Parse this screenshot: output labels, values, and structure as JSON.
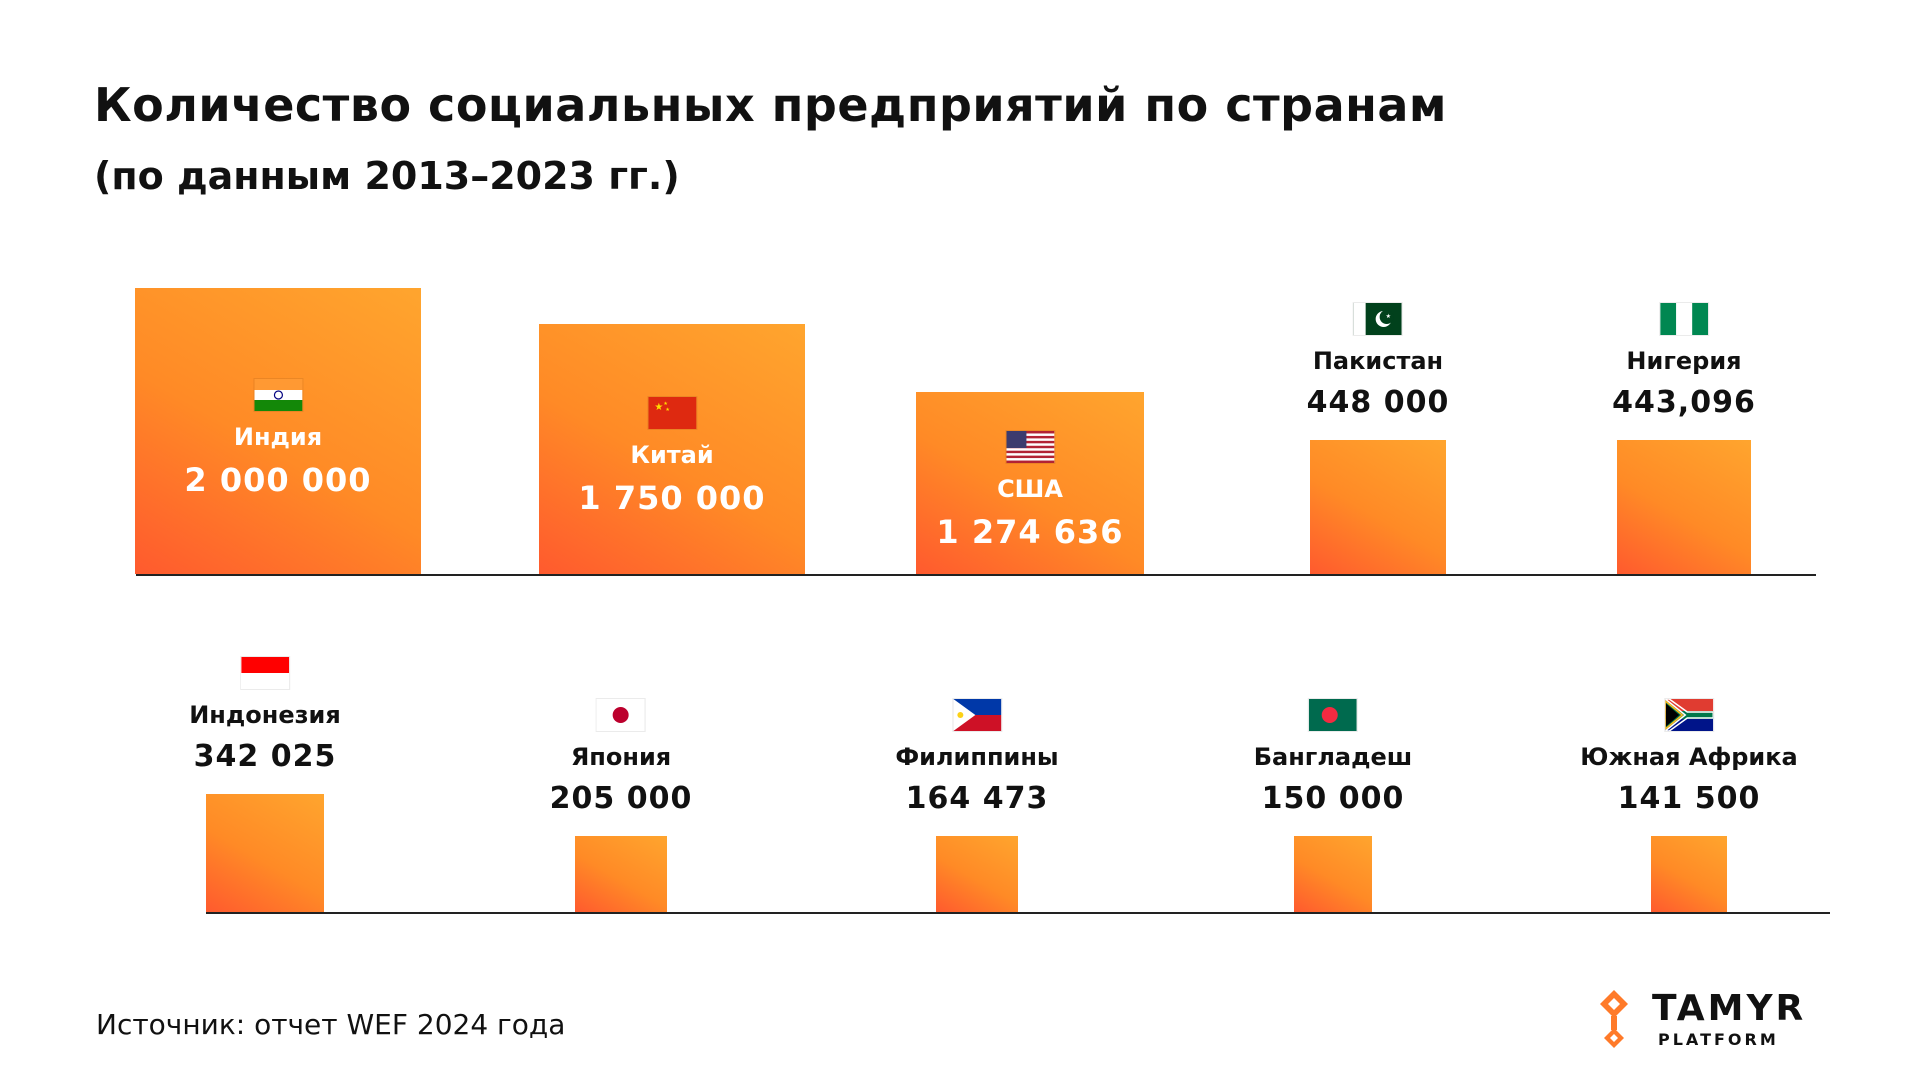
{
  "title": "Количество социальных предприятий по странам",
  "subtitle": "(по данным 2013–2023 гг.)",
  "source": "Источник: отчет WEF 2024 года",
  "logo": {
    "name": "TAMYR",
    "sub": "PLATFORM",
    "icon": "tamyr-logo-icon"
  },
  "colors": {
    "bar_start": "#ff5a2e",
    "bar_end": "#ffa52e",
    "text": "#111111"
  },
  "chart_data": [
    {
      "type": "bar",
      "categories": [
        "Индия",
        "Китай",
        "США",
        "Пакистан",
        "Нигерия"
      ],
      "values": [
        2000000,
        1750000,
        1274636,
        448000,
        443096
      ],
      "value_labels": [
        "2 000 000",
        "1 750 000",
        "1 274 636",
        "448 000",
        "443,096"
      ],
      "flags": [
        "india-flag-icon",
        "china-flag-icon",
        "usa-flag-icon",
        "pakistan-flag-icon",
        "nigeria-flag-icon"
      ]
    },
    {
      "type": "bar",
      "categories": [
        "Индонезия",
        "Япония",
        "Филиппины",
        "Бангладеш",
        "Южная Африка"
      ],
      "values": [
        342025,
        205000,
        164473,
        150000,
        141500
      ],
      "value_labels": [
        "342 025",
        "205 000",
        "164 473",
        "150 000",
        "141 500"
      ],
      "flags": [
        "indonesia-flag-icon",
        "japan-flag-icon",
        "philippines-flag-icon",
        "bangladesh-flag-icon",
        "south-africa-flag-icon"
      ]
    }
  ]
}
